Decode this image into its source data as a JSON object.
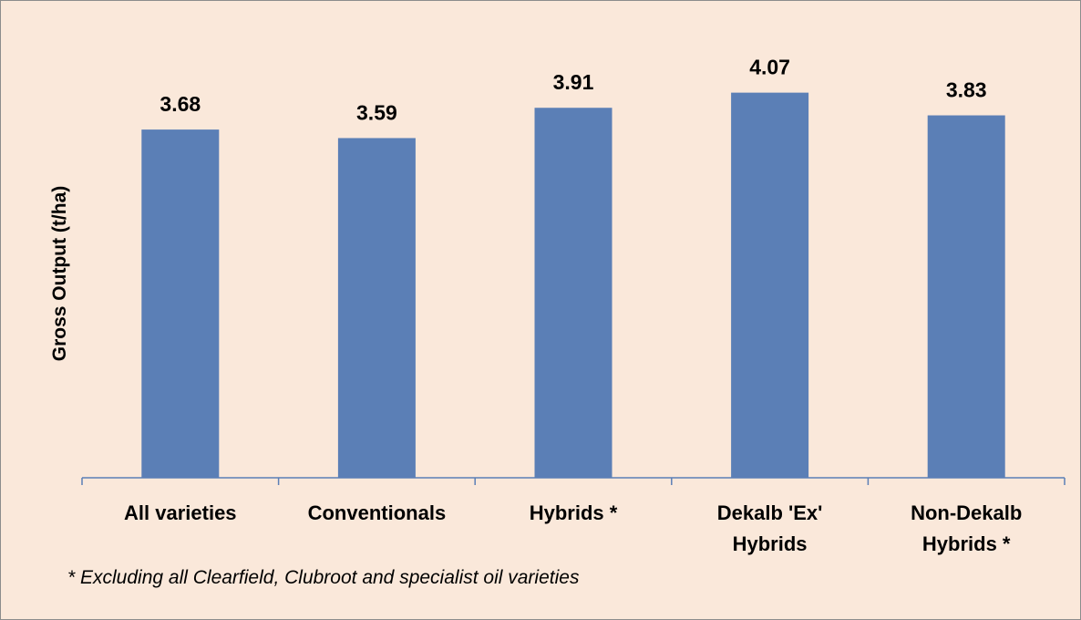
{
  "chart_data": {
    "type": "bar",
    "categories": [
      [
        "All varieties"
      ],
      [
        "Conventionals"
      ],
      [
        "Hybrids *"
      ],
      [
        "Dekalb 'Ex'",
        "Hybrids"
      ],
      [
        "Non-Dekalb",
        "Hybrids *"
      ]
    ],
    "values": [
      3.68,
      3.59,
      3.91,
      4.07,
      3.83
    ],
    "data_labels": [
      "3.68",
      "3.59",
      "3.91",
      "4.07",
      "3.83"
    ],
    "ylabel": "Gross Output (t/ha)",
    "ylim": [
      0,
      4.5
    ],
    "grid": false,
    "legend": "none",
    "bar_color": "#5b7fb6",
    "axis_color": "#5b7fb6",
    "background_color": "#fae8da"
  },
  "footnote": "* Excluding all Clearfield, Clubroot and specialist oil varieties"
}
